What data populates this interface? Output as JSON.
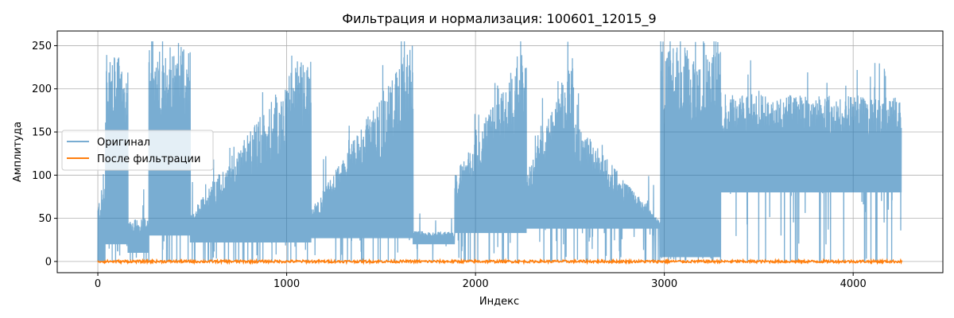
{
  "chart_data": {
    "type": "line",
    "title": "Фильтрация и нормализация: 100601_12015_9",
    "xlabel": "Индекс",
    "ylabel": "Амплитуда",
    "xlim": [
      -215,
      4475
    ],
    "ylim": [
      -13,
      267
    ],
    "xticks": [
      0,
      1000,
      2000,
      3000,
      4000
    ],
    "xtick_labels": [
      "0",
      "1000",
      "2000",
      "3000",
      "4000"
    ],
    "yticks": [
      0,
      50,
      100,
      150,
      200,
      250
    ],
    "ytick_labels": [
      "0",
      "50",
      "100",
      "150",
      "200",
      "250"
    ],
    "grid": true,
    "legend_position": "center-left",
    "n_points": 4260,
    "series": [
      {
        "name": "Оригинал",
        "color": "#1f77b4",
        "alpha": 0.6,
        "segments": [
          {
            "x_start": 0,
            "x_end": 40,
            "floor": 0,
            "peak_start": 70,
            "peak_end": 100
          },
          {
            "x_start": 40,
            "x_end": 160,
            "floor": 20,
            "peak_start": 240,
            "peak_end": 235
          },
          {
            "x_start": 160,
            "x_end": 270,
            "floor": 10,
            "peak_start": 50,
            "peak_end": 50
          },
          {
            "x_start": 270,
            "x_end": 490,
            "floor": 30,
            "peak_start": 245,
            "peak_end": 250
          },
          {
            "x_start": 490,
            "x_end": 1130,
            "floor": 22,
            "peak_start": 55,
            "peak_end": 252
          },
          {
            "x_start": 1130,
            "x_end": 1670,
            "floor": 27,
            "peak_start": 60,
            "peak_end": 255
          },
          {
            "x_start": 1670,
            "x_end": 1890,
            "floor": 20,
            "peak_start": 35,
            "peak_end": 35
          },
          {
            "x_start": 1890,
            "x_end": 2270,
            "floor": 33,
            "peak_start": 100,
            "peak_end": 255
          },
          {
            "x_start": 2270,
            "x_end": 2520,
            "floor": 38,
            "peak_start": 100,
            "peak_end": 250
          },
          {
            "x_start": 2520,
            "x_end": 2980,
            "floor": 38,
            "peak_start": 165,
            "peak_end": 45
          },
          {
            "x_start": 2980,
            "x_end": 3300,
            "floor": 5,
            "peak_start": 250,
            "peak_end": 250
          },
          {
            "x_start": 3300,
            "x_end": 4255,
            "floor": 80,
            "peak_start": 195,
            "peak_end": 190
          }
        ]
      },
      {
        "name": "После фильтрации",
        "color": "#ff7f0e",
        "alpha": 1.0,
        "baseline": 0,
        "noise_amplitude": 3
      }
    ]
  }
}
